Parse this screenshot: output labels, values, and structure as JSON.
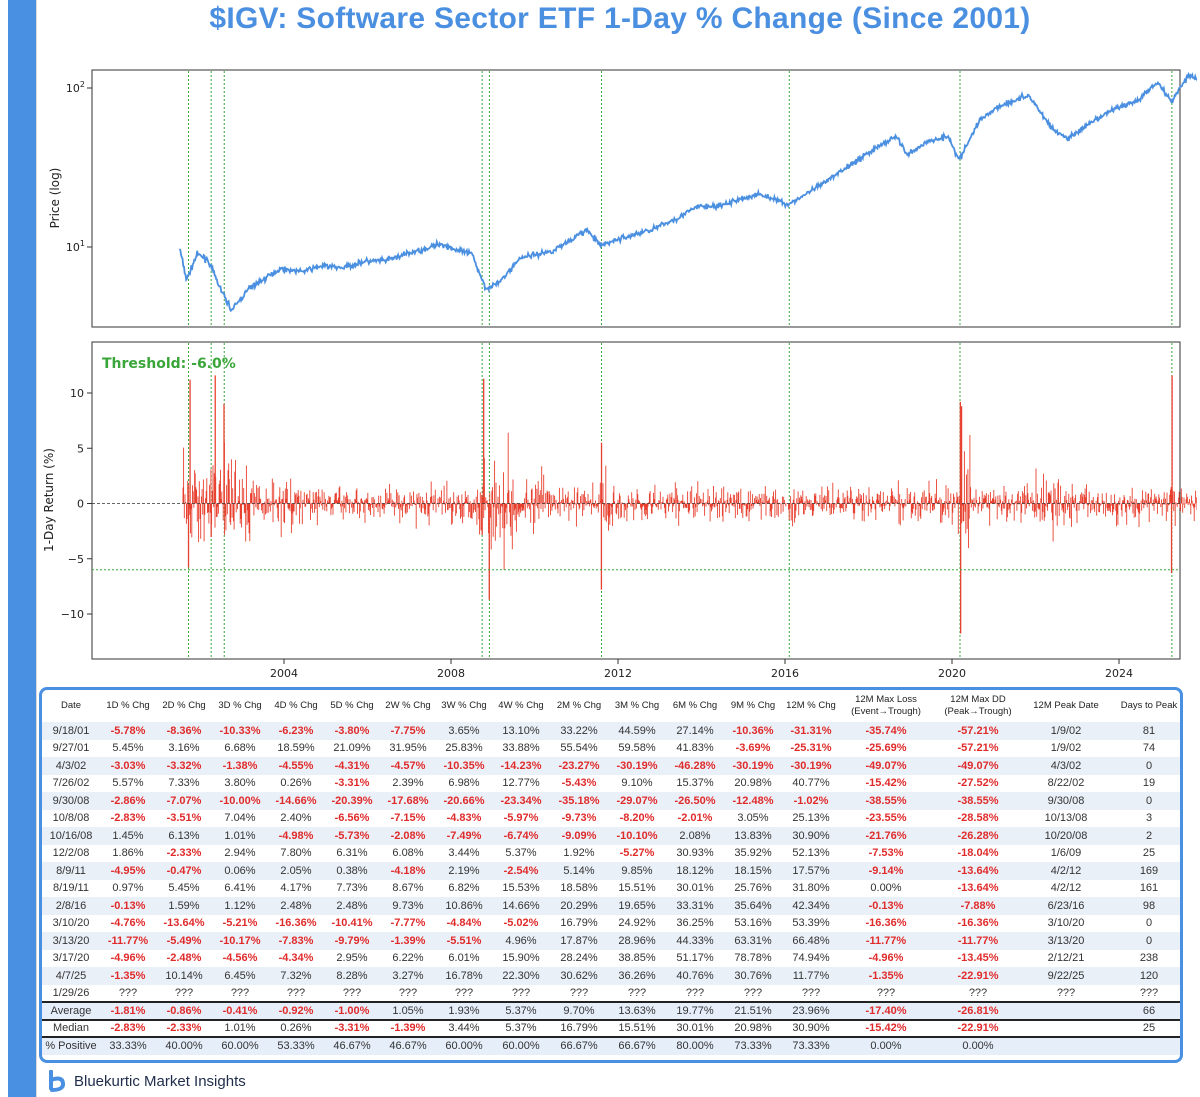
{
  "title": "$IGV: Software Sector ETF 1-Day % Change (Since 2001)",
  "brand": "Bluekurtic Market Insights",
  "colors": {
    "accent": "#4a90e2",
    "price_line": "#4a8fe0",
    "returns_bar": "#e8402f",
    "negative": "#e02b2b",
    "marker": "#3aa63a"
  },
  "chart_data": [
    {
      "type": "line",
      "ylabel": "Price (log)",
      "yscale": "log",
      "ytick_labels": [
        "10^1",
        "10^2"
      ],
      "grid": false,
      "x_range": [
        "2001-07",
        "2026-02"
      ],
      "series": [
        {
          "values": [
            [
              "2001-07",
              9.8
            ],
            [
              "2001-09",
              6.2
            ],
            [
              "2001-12",
              9.0
            ],
            [
              "2002-03",
              8.4
            ],
            [
              "2002-07",
              5.3
            ],
            [
              "2002-10",
              4.0
            ],
            [
              "2003-03",
              5.5
            ],
            [
              "2003-12",
              7.3
            ],
            [
              "2004-06",
              7.0
            ],
            [
              "2004-12",
              7.6
            ],
            [
              "2005-06",
              7.4
            ],
            [
              "2005-12",
              8.1
            ],
            [
              "2006-06",
              8.2
            ],
            [
              "2006-12",
              9.0
            ],
            [
              "2007-06",
              9.8
            ],
            [
              "2007-10",
              10.5
            ],
            [
              "2008-03",
              9.5
            ],
            [
              "2008-07",
              9.0
            ],
            [
              "2008-11",
              5.5
            ],
            [
              "2009-03",
              6.0
            ],
            [
              "2009-09",
              8.6
            ],
            [
              "2010-06",
              9.4
            ],
            [
              "2011-04",
              12.8
            ],
            [
              "2011-08",
              10.2
            ],
            [
              "2011-12",
              11.0
            ],
            [
              "2012-06",
              12.0
            ],
            [
              "2012-12",
              13.2
            ],
            [
              "2013-06",
              15.2
            ],
            [
              "2013-12",
              18.0
            ],
            [
              "2014-06",
              18.0
            ],
            [
              "2014-12",
              20.0
            ],
            [
              "2015-06",
              21.5
            ],
            [
              "2016-02",
              18.5
            ],
            [
              "2016-12",
              25.0
            ],
            [
              "2017-06",
              31.0
            ],
            [
              "2017-12",
              38.0
            ],
            [
              "2018-09",
              50.0
            ],
            [
              "2018-12",
              38.0
            ],
            [
              "2019-06",
              46.0
            ],
            [
              "2019-12",
              50.0
            ],
            [
              "2020-03",
              35.0
            ],
            [
              "2020-09",
              63.0
            ],
            [
              "2021-02",
              76.0
            ],
            [
              "2021-11",
              90.0
            ],
            [
              "2022-06",
              55.0
            ],
            [
              "2022-10",
              48.0
            ],
            [
              "2023-06",
              62.0
            ],
            [
              "2023-12",
              75.0
            ],
            [
              "2024-06",
              82.0
            ],
            [
              "2024-12",
              110.0
            ],
            [
              "2025-04",
              82.0
            ],
            [
              "2025-09",
              122.0
            ],
            [
              "2025-12",
              112.0
            ],
            [
              "2026-01",
              95.0
            ]
          ]
        }
      ]
    },
    {
      "type": "bar",
      "ylabel": "1-Day Return (%)",
      "ylim": [
        -14,
        14.5
      ],
      "yticks": [
        10,
        5,
        0,
        -5,
        -10
      ],
      "xtick_labels": [
        "2004",
        "2008",
        "2012",
        "2016",
        "2020",
        "2024"
      ],
      "threshold": -6.0,
      "annotation": "Threshold: -6.0%",
      "extremes": [
        [
          "2001-09-18",
          -5.78
        ],
        [
          "2001-10-01",
          11.2
        ],
        [
          "2002-04-03",
          -3.03
        ],
        [
          "2002-05-08",
          11.6
        ],
        [
          "2002-07-26",
          5.57
        ],
        [
          "2002-07-24",
          9.0
        ],
        [
          "2008-09-30",
          -2.86
        ],
        [
          "2008-10-13",
          11.3
        ],
        [
          "2008-10-16",
          1.45
        ],
        [
          "2008-12-01",
          -8.7
        ],
        [
          "2011-08-08",
          -7.8
        ],
        [
          "2011-08-09",
          5.5
        ],
        [
          "2016-02-08",
          -0.13
        ],
        [
          "2020-03-16",
          -11.77
        ],
        [
          "2020-03-13",
          9.2
        ],
        [
          "2020-03-24",
          8.8
        ],
        [
          "2025-04-04",
          -6.3
        ],
        [
          "2025-04-09",
          11.6
        ],
        [
          "2026-01-29",
          -6.8
        ]
      ],
      "event_markers": [
        "2001-09-18",
        "2002-04-03",
        "2002-07-26",
        "2008-09-30",
        "2008-12-02",
        "2011-08-09",
        "2016-02-08",
        "2020-03-10",
        "2025-04-07",
        "2026-01-29"
      ]
    }
  ],
  "table": {
    "headers": [
      "Date",
      "1D % Chg",
      "2D % Chg",
      "3D % Chg",
      "4D % Chg",
      "5D % Chg",
      "2W % Chg",
      "3W % Chg",
      "4W % Chg",
      "2M % Chg",
      "3M % Chg",
      "6M % Chg",
      "9M % Chg",
      "12M % Chg",
      "12M Max Loss|(Event→Trough)",
      "12M Max DD|(Peak→Trough)",
      "12M Peak Date",
      "Days to Peak"
    ],
    "rows": [
      [
        "9/18/01",
        "-5.78%",
        "-8.36%",
        "-10.33%",
        "-6.23%",
        "-3.80%",
        "-7.75%",
        "3.65%",
        "13.10%",
        "33.22%",
        "44.59%",
        "27.14%",
        "-10.36%",
        "-31.31%",
        "-35.74%",
        "-57.21%",
        "1/9/02",
        "81"
      ],
      [
        "9/27/01",
        "5.45%",
        "3.16%",
        "6.68%",
        "18.59%",
        "21.09%",
        "31.95%",
        "25.83%",
        "33.88%",
        "55.54%",
        "59.58%",
        "41.83%",
        "-3.69%",
        "-25.31%",
        "-25.69%",
        "-57.21%",
        "1/9/02",
        "74"
      ],
      [
        "4/3/02",
        "-3.03%",
        "-3.32%",
        "-1.38%",
        "-4.55%",
        "-4.31%",
        "-4.57%",
        "-10.35%",
        "-14.23%",
        "-23.27%",
        "-30.19%",
        "-46.28%",
        "-30.19%",
        "-30.19%",
        "-49.07%",
        "-49.07%",
        "4/3/02",
        "0"
      ],
      [
        "7/26/02",
        "5.57%",
        "7.33%",
        "3.80%",
        "0.26%",
        "-3.31%",
        "2.39%",
        "6.98%",
        "12.77%",
        "-5.43%",
        "9.10%",
        "15.37%",
        "20.98%",
        "40.77%",
        "-15.42%",
        "-27.52%",
        "8/22/02",
        "19"
      ],
      [
        "9/30/08",
        "-2.86%",
        "-7.07%",
        "-10.00%",
        "-14.66%",
        "-20.39%",
        "-17.68%",
        "-20.66%",
        "-23.34%",
        "-35.18%",
        "-29.07%",
        "-26.50%",
        "-12.48%",
        "-1.02%",
        "-38.55%",
        "-38.55%",
        "9/30/08",
        "0"
      ],
      [
        "10/8/08",
        "-2.83%",
        "-3.51%",
        "7.04%",
        "2.40%",
        "-6.56%",
        "-7.15%",
        "-4.83%",
        "-5.97%",
        "-9.73%",
        "-8.20%",
        "-2.01%",
        "3.05%",
        "25.13%",
        "-23.55%",
        "-28.58%",
        "10/13/08",
        "3"
      ],
      [
        "10/16/08",
        "1.45%",
        "6.13%",
        "1.01%",
        "-4.98%",
        "-5.73%",
        "-2.08%",
        "-7.49%",
        "-6.74%",
        "-9.09%",
        "-10.10%",
        "2.08%",
        "13.83%",
        "30.90%",
        "-21.76%",
        "-26.28%",
        "10/20/08",
        "2"
      ],
      [
        "12/2/08",
        "1.86%",
        "-2.33%",
        "2.94%",
        "7.80%",
        "6.31%",
        "6.08%",
        "3.44%",
        "5.37%",
        "1.92%",
        "-5.27%",
        "30.93%",
        "35.92%",
        "52.13%",
        "-7.53%",
        "-18.04%",
        "1/6/09",
        "25"
      ],
      [
        "8/9/11",
        "-4.95%",
        "-0.47%",
        "0.06%",
        "2.05%",
        "0.38%",
        "-4.18%",
        "2.19%",
        "-2.54%",
        "5.14%",
        "9.85%",
        "18.12%",
        "18.15%",
        "17.57%",
        "-9.14%",
        "-13.64%",
        "4/2/12",
        "169"
      ],
      [
        "8/19/11",
        "0.97%",
        "5.45%",
        "6.41%",
        "4.17%",
        "7.73%",
        "8.67%",
        "6.82%",
        "15.53%",
        "18.58%",
        "15.51%",
        "30.01%",
        "25.76%",
        "31.80%",
        "0.00%",
        "-13.64%",
        "4/2/12",
        "161"
      ],
      [
        "2/8/16",
        "-0.13%",
        "1.59%",
        "1.12%",
        "2.48%",
        "2.48%",
        "9.73%",
        "10.86%",
        "14.66%",
        "20.29%",
        "19.65%",
        "33.31%",
        "35.64%",
        "42.34%",
        "-0.13%",
        "-7.88%",
        "6/23/16",
        "98"
      ],
      [
        "3/10/20",
        "-4.76%",
        "-13.64%",
        "-5.21%",
        "-16.36%",
        "-10.41%",
        "-7.77%",
        "-4.84%",
        "-5.02%",
        "16.79%",
        "24.92%",
        "36.25%",
        "53.16%",
        "53.39%",
        "-16.36%",
        "-16.36%",
        "3/10/20",
        "0"
      ],
      [
        "3/13/20",
        "-11.77%",
        "-5.49%",
        "-10.17%",
        "-7.83%",
        "-9.79%",
        "-1.39%",
        "-5.51%",
        "4.96%",
        "17.87%",
        "28.96%",
        "44.33%",
        "63.31%",
        "66.48%",
        "-11.77%",
        "-11.77%",
        "3/13/20",
        "0"
      ],
      [
        "3/17/20",
        "-4.96%",
        "-2.48%",
        "-4.56%",
        "-4.34%",
        "2.95%",
        "6.22%",
        "6.01%",
        "15.90%",
        "28.24%",
        "38.85%",
        "51.17%",
        "78.78%",
        "74.94%",
        "-4.96%",
        "-13.45%",
        "2/12/21",
        "238"
      ],
      [
        "4/7/25",
        "-1.35%",
        "10.14%",
        "6.45%",
        "7.32%",
        "8.28%",
        "3.27%",
        "16.78%",
        "22.30%",
        "30.62%",
        "36.26%",
        "40.76%",
        "30.76%",
        "11.77%",
        "-1.35%",
        "-22.91%",
        "9/22/25",
        "120"
      ],
      [
        "1/29/26",
        "???",
        "???",
        "???",
        "???",
        "???",
        "???",
        "???",
        "???",
        "???",
        "???",
        "???",
        "???",
        "???",
        "???",
        "???",
        "???",
        "???"
      ]
    ],
    "summary": [
      [
        "Average",
        "-1.81%",
        "-0.86%",
        "-0.41%",
        "-0.92%",
        "-1.00%",
        "1.05%",
        "1.93%",
        "5.37%",
        "9.70%",
        "13.63%",
        "19.77%",
        "21.51%",
        "23.96%",
        "-17.40%",
        "-26.81%",
        "",
        "66"
      ],
      [
        "Median",
        "-2.83%",
        "-2.33%",
        "1.01%",
        "0.26%",
        "-3.31%",
        "-1.39%",
        "3.44%",
        "5.37%",
        "16.79%",
        "15.51%",
        "30.01%",
        "20.98%",
        "30.90%",
        "-15.42%",
        "-22.91%",
        "",
        "25"
      ],
      [
        "% Positive",
        "33.33%",
        "40.00%",
        "60.00%",
        "53.33%",
        "46.67%",
        "46.67%",
        "60.00%",
        "60.00%",
        "66.67%",
        "66.67%",
        "80.00%",
        "73.33%",
        "73.33%",
        "0.00%",
        "0.00%",
        "",
        ""
      ]
    ]
  }
}
